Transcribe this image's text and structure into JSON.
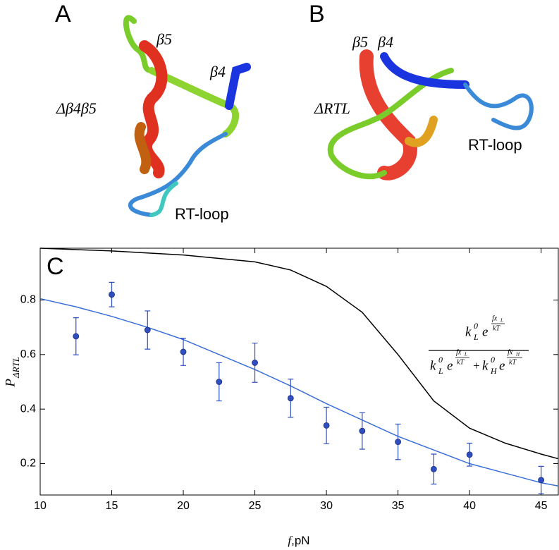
{
  "structures": {
    "panel_a": "A",
    "panel_b": "B",
    "a_beta5": "β5",
    "a_beta4": "β4",
    "a_name": "Δβ4β5",
    "a_loop": "RT-loop",
    "b_beta5": "β5",
    "b_beta4": "β4",
    "b_name": "ΔRTL",
    "b_loop": "RT-loop"
  },
  "chart_data": {
    "type": "scatter",
    "panel": "C",
    "x_label": [
      "f",
      ",pN"
    ],
    "y_label": [
      "P",
      "ΔRTL"
    ],
    "annotation": [
      "k",
      "0",
      "L",
      "e",
      "fx",
      "L",
      "kT",
      "k",
      "0",
      "L",
      "e",
      "fx",
      "L",
      "kT",
      "+",
      "k",
      "0",
      "H",
      "e",
      "fx",
      "H",
      "kT"
    ],
    "xlim": [
      10,
      46.2
    ],
    "ylim": [
      0.085,
      0.99
    ],
    "xticks": [
      10,
      15,
      20,
      25,
      30,
      35,
      40,
      45
    ],
    "yticks": [
      0.2,
      0.4,
      0.6,
      0.8
    ],
    "points": {
      "color": "#2f4fbf",
      "x": [
        12.5,
        15,
        17.5,
        20,
        22.5,
        25,
        27.5,
        30,
        32.5,
        35,
        37.5,
        40,
        45
      ],
      "values": [
        0.667,
        0.82,
        0.69,
        0.61,
        0.5,
        0.57,
        0.44,
        0.34,
        0.32,
        0.28,
        0.18,
        0.233,
        0.14
      ],
      "errors": [
        0.068,
        0.045,
        0.07,
        0.05,
        0.07,
        0.072,
        0.07,
        0.067,
        0.067,
        0.065,
        0.055,
        0.042,
        0.05
      ]
    },
    "series": [
      {
        "color": "#3a6fd8",
        "x": [
          10,
          12.5,
          15,
          17.5,
          20,
          22.5,
          25,
          27.5,
          30,
          32.5,
          35,
          37.5,
          40,
          42.5,
          45,
          46.2
        ],
        "values": [
          0.805,
          0.775,
          0.74,
          0.7,
          0.655,
          0.6,
          0.545,
          0.485,
          0.42,
          0.36,
          0.3,
          0.25,
          0.2,
          0.165,
          0.13,
          0.118
        ]
      },
      {
        "color": "#000000",
        "x": [
          10,
          15,
          20,
          25,
          27.5,
          30,
          32.5,
          35,
          37.5,
          40,
          42.5,
          45,
          46.2
        ],
        "values": [
          0.99,
          0.98,
          0.965,
          0.94,
          0.91,
          0.85,
          0.755,
          0.6,
          0.43,
          0.33,
          0.275,
          0.235,
          0.218
        ]
      }
    ]
  }
}
